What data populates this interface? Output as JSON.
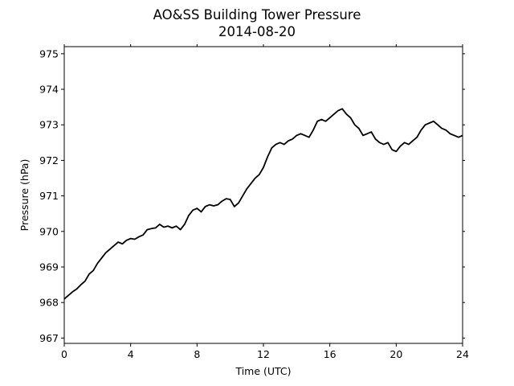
{
  "chart_data": {
    "type": "line",
    "title": "AO&SS Building Tower Pressure",
    "subtitle": "2014-08-20",
    "xlabel": "Time (UTC)",
    "ylabel": "Pressure (hPa)",
    "xlim": [
      0,
      24
    ],
    "ylim": [
      966.85,
      975.2
    ],
    "xticks": [
      0,
      4,
      8,
      12,
      16,
      20,
      24
    ],
    "yticks": [
      967,
      968,
      969,
      970,
      971,
      972,
      973,
      974,
      975
    ],
    "grid": false,
    "legend": "none",
    "series": [
      {
        "color": "#000000",
        "x": [
          0,
          0.25,
          0.5,
          0.75,
          1.0,
          1.25,
          1.5,
          1.75,
          2.0,
          2.25,
          2.5,
          2.75,
          3.0,
          3.25,
          3.5,
          3.75,
          4.0,
          4.25,
          4.5,
          4.75,
          5.0,
          5.25,
          5.5,
          5.75,
          6.0,
          6.25,
          6.5,
          6.75,
          7.0,
          7.25,
          7.5,
          7.75,
          8.0,
          8.25,
          8.5,
          8.75,
          9.0,
          9.25,
          9.5,
          9.75,
          10.0,
          10.25,
          10.5,
          10.75,
          11.0,
          11.25,
          11.5,
          11.75,
          12.0,
          12.25,
          12.5,
          12.75,
          13.0,
          13.25,
          13.5,
          13.75,
          14.0,
          14.25,
          14.5,
          14.75,
          15.0,
          15.25,
          15.5,
          15.75,
          16.0,
          16.25,
          16.5,
          16.75,
          17.0,
          17.25,
          17.5,
          17.75,
          18.0,
          18.25,
          18.5,
          18.75,
          19.0,
          19.25,
          19.5,
          19.75,
          20.0,
          20.25,
          20.5,
          20.75,
          21.0,
          21.25,
          21.5,
          21.75,
          22.0,
          22.25,
          22.5,
          22.75,
          23.0,
          23.25,
          23.5,
          23.75,
          24.0
        ],
        "y": [
          968.1,
          968.2,
          968.3,
          968.38,
          968.5,
          968.6,
          968.8,
          968.9,
          969.1,
          969.25,
          969.4,
          969.5,
          969.6,
          969.7,
          969.65,
          969.75,
          969.8,
          969.78,
          969.85,
          969.9,
          970.05,
          970.08,
          970.1,
          970.2,
          970.12,
          970.15,
          970.1,
          970.15,
          970.05,
          970.2,
          970.45,
          970.6,
          970.65,
          970.55,
          970.7,
          970.75,
          970.72,
          970.75,
          970.85,
          970.92,
          970.9,
          970.7,
          970.8,
          971.0,
          971.2,
          971.35,
          971.5,
          971.6,
          971.8,
          972.1,
          972.35,
          972.45,
          972.5,
          972.45,
          972.55,
          972.6,
          972.7,
          972.75,
          972.7,
          972.65,
          972.85,
          973.1,
          973.15,
          973.1,
          973.2,
          973.3,
          973.4,
          973.45,
          973.3,
          973.2,
          973.0,
          972.9,
          972.7,
          972.75,
          972.8,
          972.6,
          972.5,
          972.45,
          972.5,
          972.3,
          972.25,
          972.4,
          972.5,
          972.45,
          972.55,
          972.65,
          972.85,
          973.0,
          973.05,
          973.1,
          973.0,
          972.9,
          972.85,
          972.75,
          972.7,
          972.65,
          972.7
        ]
      }
    ]
  }
}
